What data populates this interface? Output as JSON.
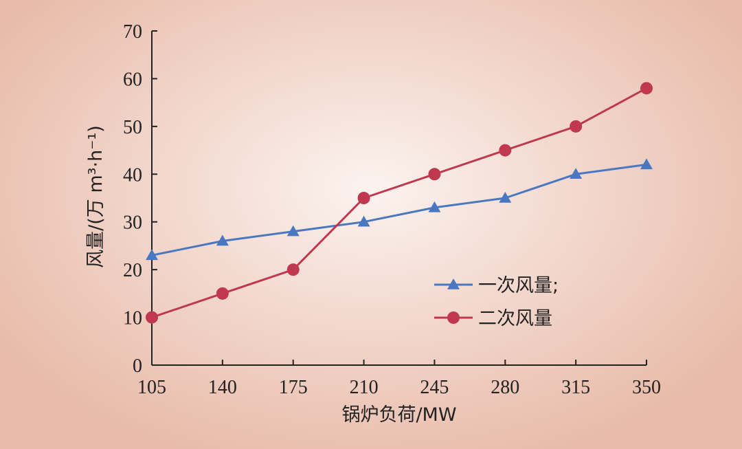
{
  "chart_data": {
    "type": "line",
    "title": "",
    "xlabel": "锅炉负荷/MW",
    "ylabel": "风量/(万 m³·h⁻¹)",
    "x": [
      105,
      140,
      175,
      210,
      245,
      280,
      315,
      350
    ],
    "xlim": [
      105,
      350
    ],
    "ylim": [
      0,
      70
    ],
    "yticks": [
      0,
      10,
      20,
      30,
      40,
      50,
      60,
      70
    ],
    "grid": false,
    "legend_position": "bottom-right",
    "series": [
      {
        "name": "一次风量;",
        "marker": "triangle",
        "color": "#4a78c0",
        "values": [
          23,
          26,
          28,
          30,
          33,
          35,
          40,
          42
        ]
      },
      {
        "name": "二次风量",
        "marker": "circle",
        "color": "#c0384e",
        "values": [
          10,
          15,
          20,
          35,
          40,
          45,
          50,
          58
        ]
      }
    ]
  }
}
